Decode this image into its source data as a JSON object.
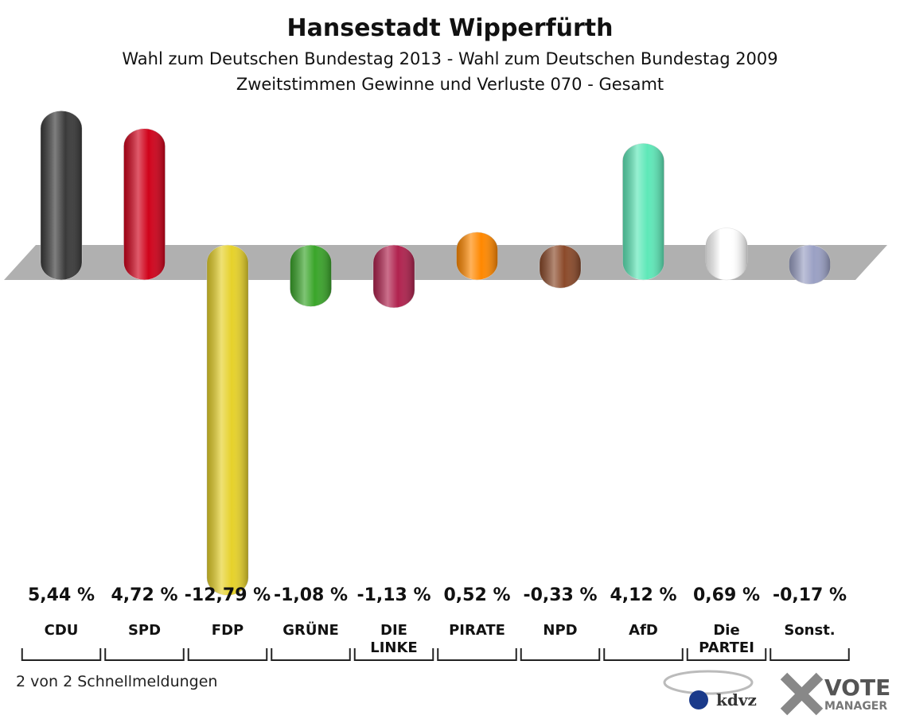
{
  "chart_data": {
    "type": "bar",
    "title": "Hansestadt Wipperfürth",
    "subtitle": "Wahl zum Deutschen Bundestag 2013 - Wahl zum Deutschen Bundestag 2009",
    "subtitle2": "Zweitstimmen Gewinne und Verluste 070 - Gesamt",
    "categories": [
      "CDU",
      "SPD",
      "FDP",
      "GRÜNE",
      "DIE LINKE",
      "PIRATE",
      "NPD",
      "AfD",
      "Die PARTEI",
      "Sonst."
    ],
    "values": [
      5.44,
      4.72,
      -12.79,
      -1.08,
      -1.13,
      0.52,
      -0.33,
      4.12,
      0.69,
      -0.17
    ],
    "value_labels": [
      "5,44 %",
      "4,72 %",
      "-12,79 %",
      "-1,08 %",
      "-1,13 %",
      "0,52 %",
      "-0,33 %",
      "4,12 %",
      "0,69 %",
      "-0,17 %"
    ],
    "colors": [
      "#3a3a3a",
      "#d0021b",
      "#e6d12a",
      "#3aa52a",
      "#b0224e",
      "#ff8800",
      "#8b4a2a",
      "#5ee8b8",
      "#ffffff",
      "#9aa0c4"
    ],
    "footer": "2 von 2 Schnellmeldungen",
    "logo1": "kdvz",
    "logo2": "VOTE",
    "logo3": "MANAGER"
  }
}
